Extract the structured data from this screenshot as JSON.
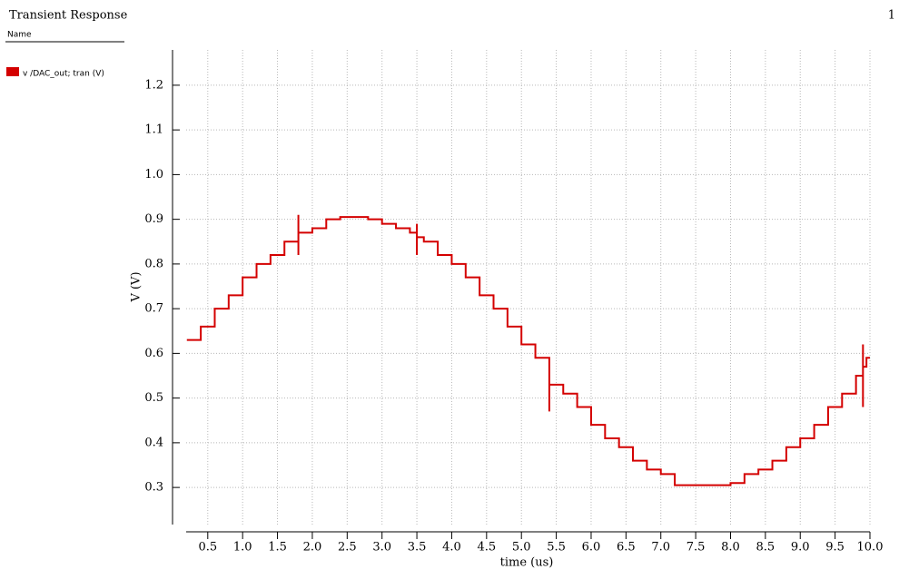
{
  "header": {
    "title": "Transient Response",
    "page": "1",
    "name_label": "Name"
  },
  "chart_data": {
    "type": "line",
    "xlabel": "time (us)",
    "ylabel": "V (V)",
    "xlim": [
      0.19,
      10.0
    ],
    "ylim": [
      0.217,
      1.279
    ],
    "xticks": [
      0.5,
      {
        "value": 1,
        "label": "1.0"
      },
      1.5,
      {
        "value": 2,
        "label": "2.0"
      },
      2.5,
      {
        "value": 3,
        "label": "3.0"
      },
      3.5,
      {
        "value": 4,
        "label": "4.0"
      },
      4.5,
      {
        "value": 5,
        "label": "5.0"
      },
      5.5,
      {
        "value": 6,
        "label": "6.0"
      },
      6.5,
      {
        "value": 7,
        "label": "7.0"
      },
      7.5,
      {
        "value": 8,
        "label": "8.0"
      },
      8.5,
      {
        "value": 9,
        "label": "9.0"
      },
      9.5,
      {
        "value": 10,
        "label": "10.0"
      }
    ],
    "yticks": [
      0.3,
      0.4,
      0.5,
      0.6,
      0.7,
      0.8,
      0.9,
      {
        "value": 1,
        "label": "1.0"
      },
      1.1,
      1.2
    ],
    "grid": true,
    "series": [
      {
        "name": "v /DAC_out; tran (V)",
        "color": "#d40000",
        "x": [
          0.2,
          0.4,
          0.4,
          0.6,
          0.6,
          0.8,
          0.8,
          1.0,
          1.0,
          1.2,
          1.2,
          1.4,
          1.4,
          1.6,
          1.6,
          1.8,
          1.8,
          1.8,
          1.8,
          2.0,
          2.0,
          2.2,
          2.2,
          2.4,
          2.4,
          2.8,
          2.8,
          3.0,
          3.0,
          3.2,
          3.2,
          3.4,
          3.4,
          3.5,
          3.5,
          3.5,
          3.5,
          3.6,
          3.6,
          3.8,
          3.8,
          4.0,
          4.0,
          4.2,
          4.2,
          4.4,
          4.4,
          4.6,
          4.6,
          4.8,
          4.8,
          5.0,
          5.0,
          5.2,
          5.2,
          5.4,
          5.4,
          5.4,
          5.4,
          5.6,
          5.6,
          5.8,
          5.8,
          6.0,
          6.0,
          6.2,
          6.2,
          6.4,
          6.4,
          6.6,
          6.6,
          6.8,
          6.8,
          7.0,
          7.0,
          7.2,
          7.2,
          8.0,
          8.0,
          8.2,
          8.2,
          8.4,
          8.4,
          8.6,
          8.6,
          8.8,
          8.8,
          9.0,
          9.0,
          9.2,
          9.2,
          9.4,
          9.4,
          9.6,
          9.6,
          9.8,
          9.8,
          9.9,
          9.9,
          9.9,
          9.9,
          9.95,
          9.95,
          10.0
        ],
        "values": [
          0.63,
          0.63,
          0.66,
          0.66,
          0.7,
          0.7,
          0.73,
          0.73,
          0.77,
          0.77,
          0.8,
          0.8,
          0.82,
          0.82,
          0.85,
          0.85,
          0.91,
          0.82,
          0.87,
          0.87,
          0.88,
          0.88,
          0.9,
          0.9,
          0.905,
          0.905,
          0.9,
          0.9,
          0.89,
          0.89,
          0.88,
          0.88,
          0.87,
          0.87,
          0.89,
          0.82,
          0.86,
          0.86,
          0.85,
          0.85,
          0.82,
          0.82,
          0.8,
          0.8,
          0.77,
          0.77,
          0.73,
          0.73,
          0.7,
          0.7,
          0.66,
          0.66,
          0.62,
          0.62,
          0.59,
          0.59,
          0.57,
          0.47,
          0.53,
          0.53,
          0.51,
          0.51,
          0.48,
          0.48,
          0.44,
          0.44,
          0.41,
          0.41,
          0.39,
          0.39,
          0.36,
          0.36,
          0.34,
          0.34,
          0.33,
          0.33,
          0.305,
          0.305,
          0.31,
          0.31,
          0.33,
          0.33,
          0.34,
          0.34,
          0.36,
          0.36,
          0.39,
          0.39,
          0.41,
          0.41,
          0.44,
          0.44,
          0.48,
          0.48,
          0.51,
          0.51,
          0.55,
          0.55,
          0.62,
          0.48,
          0.57,
          0.57,
          0.59,
          0.59
        ]
      }
    ]
  }
}
